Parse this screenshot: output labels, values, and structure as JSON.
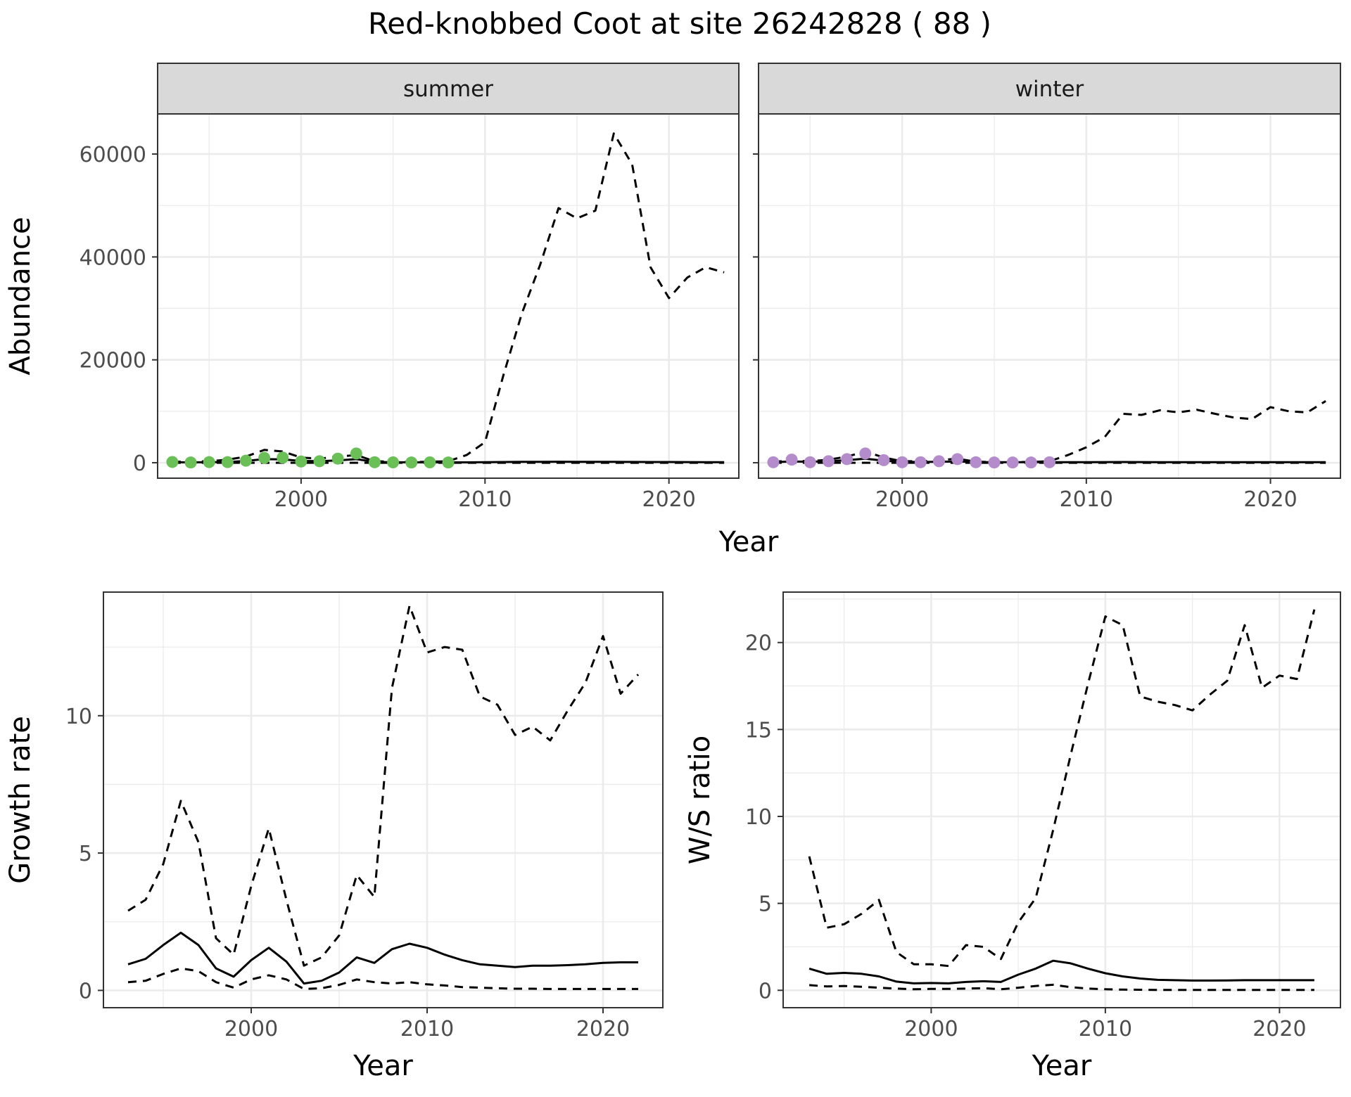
{
  "title": "Red-knobbed Coot at site 26242828 ( 88 )",
  "colors": {
    "summer_points": "#6ABF57",
    "winter_points": "#B48CCC",
    "strip_bg": "#D9D9D9",
    "grid": "#EBEBEB",
    "line": "#000000"
  },
  "chart_data": [
    {
      "type": "line",
      "facet": "summer",
      "xlabel": "Year",
      "ylabel": "Abundance",
      "xlim": [
        1992.2,
        2023.8
      ],
      "ylim": [
        -3000,
        67800
      ],
      "x_ticks": [
        2000,
        2010,
        2020
      ],
      "y_ticks": [
        0,
        20000,
        40000,
        60000
      ],
      "grid": true,
      "points": {
        "x": [
          1993,
          1994,
          1995,
          1996,
          1997,
          1998,
          1999,
          2000,
          2001,
          2002,
          2003,
          2004,
          2005,
          2006,
          2007,
          2008
        ],
        "y": [
          150,
          50,
          120,
          120,
          400,
          950,
          1000,
          250,
          300,
          800,
          1800,
          100,
          80,
          50,
          80,
          50
        ]
      },
      "series": [
        {
          "style": "solid",
          "x": [
            1993,
            1994,
            1995,
            1996,
            1997,
            1998,
            1999,
            2000,
            2001,
            2002,
            2003,
            2004,
            2005,
            2006,
            2007,
            2008,
            2009,
            2010,
            2011,
            2012,
            2013,
            2014,
            2015,
            2016,
            2017,
            2018,
            2019,
            2020,
            2021,
            2022,
            2023
          ],
          "y": [
            100,
            80,
            120,
            150,
            350,
            700,
            650,
            350,
            320,
            450,
            700,
            150,
            100,
            80,
            80,
            70,
            80,
            100,
            150,
            170,
            190,
            200,
            190,
            180,
            170,
            160,
            150,
            140,
            130,
            120,
            110
          ]
        },
        {
          "style": "dashed",
          "x": [
            1993,
            1994,
            1995,
            1996,
            1997,
            1998,
            1999,
            2000,
            2001,
            2002,
            2003,
            2004,
            2005,
            2006,
            2007,
            2008,
            2009,
            2010,
            2011,
            2012,
            2013,
            2014,
            2015,
            2016,
            2017,
            2018,
            2019,
            2020,
            2021,
            2022,
            2023
          ],
          "y": [
            200,
            200,
            300,
            600,
            1200,
            2500,
            2200,
            1000,
            800,
            1200,
            1500,
            300,
            200,
            150,
            200,
            300,
            1500,
            4000,
            17000,
            29000,
            38500,
            49500,
            47500,
            49000,
            64000,
            58000,
            38000,
            32000,
            36000,
            38000,
            37000
          ]
        },
        {
          "style": "dashed",
          "x": [
            1993,
            2000,
            2005,
            2010,
            2015,
            2020,
            2023
          ],
          "y": [
            0,
            0,
            0,
            0,
            0,
            0,
            0
          ]
        }
      ]
    },
    {
      "type": "line",
      "facet": "winter",
      "xlabel": "Year",
      "ylabel": "Abundance",
      "xlim": [
        1992.2,
        2023.8
      ],
      "ylim": [
        -3000,
        67800
      ],
      "x_ticks": [
        2000,
        2010,
        2020
      ],
      "y_ticks": [
        0,
        20000,
        40000,
        60000
      ],
      "grid": true,
      "points": {
        "x": [
          1993,
          1994,
          1995,
          1996,
          1997,
          1998,
          1999,
          2000,
          2001,
          2002,
          2003,
          2004,
          2005,
          2006,
          2007,
          2008
        ],
        "y": [
          100,
          600,
          100,
          300,
          700,
          1800,
          500,
          100,
          100,
          300,
          700,
          100,
          50,
          50,
          50,
          100
        ]
      },
      "series": [
        {
          "style": "solid",
          "x": [
            1993,
            1994,
            1995,
            1996,
            1997,
            1998,
            1999,
            2000,
            2001,
            2002,
            2003,
            2004,
            2005,
            2006,
            2007,
            2008,
            2009,
            2010,
            2011,
            2012,
            2013,
            2014,
            2015,
            2016,
            2017,
            2018,
            2019,
            2020,
            2021,
            2022,
            2023
          ],
          "y": [
            100,
            250,
            200,
            300,
            500,
            800,
            400,
            200,
            150,
            200,
            250,
            150,
            100,
            100,
            100,
            100,
            100,
            120,
            130,
            140,
            130,
            120,
            110,
            100,
            100,
            100,
            100,
            100,
            100,
            100,
            100
          ]
        },
        {
          "style": "dashed",
          "x": [
            1993,
            1994,
            1995,
            1996,
            1997,
            1998,
            1999,
            2000,
            2001,
            2002,
            2003,
            2004,
            2005,
            2006,
            2007,
            2008,
            2009,
            2010,
            2011,
            2012,
            2013,
            2014,
            2015,
            2016,
            2017,
            2018,
            2019,
            2020,
            2021,
            2022,
            2023
          ],
          "y": [
            200,
            400,
            300,
            600,
            1200,
            2200,
            1000,
            300,
            300,
            500,
            800,
            200,
            150,
            150,
            150,
            300,
            1500,
            3000,
            5000,
            9500,
            9300,
            10200,
            9800,
            10300,
            9500,
            8800,
            8500,
            10800,
            10000,
            9800,
            12000
          ]
        },
        {
          "style": "dashed",
          "x": [
            1993,
            2000,
            2005,
            2010,
            2015,
            2020,
            2023
          ],
          "y": [
            0,
            0,
            0,
            0,
            0,
            0,
            0
          ]
        }
      ]
    },
    {
      "type": "line",
      "xlabel": "Year",
      "ylabel": "Growth rate",
      "xlim": [
        1991.6,
        2023.4
      ],
      "ylim": [
        -0.63,
        14.5
      ],
      "x_ticks": [
        2000,
        2010,
        2020
      ],
      "y_ticks": [
        0,
        5,
        10
      ],
      "grid": true,
      "series": [
        {
          "style": "solid",
          "x": [
            1993,
            1994,
            1995,
            1996,
            1997,
            1998,
            1999,
            2000,
            2001,
            2002,
            2003,
            2004,
            2005,
            2006,
            2007,
            2008,
            2009,
            2010,
            2011,
            2012,
            2013,
            2014,
            2015,
            2016,
            2017,
            2018,
            2019,
            2020,
            2021,
            2022
          ],
          "y": [
            0.95,
            1.15,
            1.65,
            2.1,
            1.65,
            0.8,
            0.5,
            1.1,
            1.55,
            1.05,
            0.25,
            0.35,
            0.65,
            1.2,
            1.0,
            1.5,
            1.7,
            1.55,
            1.3,
            1.1,
            0.95,
            0.9,
            0.85,
            0.9,
            0.9,
            0.92,
            0.95,
            1.0,
            1.02,
            1.02
          ]
        },
        {
          "style": "dashed",
          "x": [
            1993,
            1994,
            1995,
            1996,
            1997,
            1998,
            1999,
            2000,
            2001,
            2002,
            2003,
            2004,
            2005,
            2006,
            2007,
            2008,
            2009,
            2010,
            2011,
            2012,
            2013,
            2014,
            2015,
            2016,
            2017,
            2018,
            2019,
            2020,
            2021,
            2022
          ],
          "y": [
            2.9,
            3.3,
            4.6,
            6.9,
            5.4,
            1.9,
            1.3,
            3.8,
            5.9,
            3.3,
            0.9,
            1.2,
            2.0,
            4.2,
            3.4,
            11.0,
            14.0,
            12.3,
            12.5,
            12.4,
            10.7,
            10.4,
            9.3,
            9.6,
            9.1,
            10.2,
            11.2,
            12.9,
            10.8,
            11.5
          ]
        },
        {
          "style": "dashed",
          "x": [
            1993,
            1994,
            1995,
            1996,
            1997,
            1998,
            1999,
            2000,
            2001,
            2002,
            2003,
            2004,
            2005,
            2006,
            2007,
            2008,
            2009,
            2010,
            2011,
            2012,
            2013,
            2014,
            2015,
            2016,
            2017,
            2018,
            2019,
            2020,
            2021,
            2022
          ],
          "y": [
            0.3,
            0.35,
            0.6,
            0.8,
            0.7,
            0.3,
            0.1,
            0.4,
            0.55,
            0.4,
            0.05,
            0.08,
            0.2,
            0.4,
            0.3,
            0.25,
            0.3,
            0.22,
            0.18,
            0.12,
            0.1,
            0.08,
            0.06,
            0.06,
            0.05,
            0.05,
            0.05,
            0.05,
            0.05,
            0.05
          ]
        }
      ]
    },
    {
      "type": "line",
      "xlabel": "Year",
      "ylabel": "W/S ratio",
      "xlim": [
        1991.5,
        2023.5
      ],
      "ylim": [
        -1.0,
        22.9
      ],
      "x_ticks": [
        2000,
        2010,
        2020
      ],
      "y_ticks": [
        0,
        5,
        10,
        15,
        20
      ],
      "grid": true,
      "series": [
        {
          "style": "solid",
          "x": [
            1993,
            1994,
            1995,
            1996,
            1997,
            1998,
            1999,
            2000,
            2001,
            2002,
            2003,
            2004,
            2005,
            2006,
            2007,
            2008,
            2009,
            2010,
            2011,
            2012,
            2013,
            2014,
            2015,
            2016,
            2017,
            2018,
            2019,
            2020,
            2021,
            2022
          ],
          "y": [
            1.25,
            0.95,
            1.0,
            0.95,
            0.8,
            0.5,
            0.4,
            0.42,
            0.4,
            0.48,
            0.52,
            0.48,
            0.9,
            1.25,
            1.7,
            1.55,
            1.25,
            0.98,
            0.8,
            0.68,
            0.6,
            0.58,
            0.56,
            0.56,
            0.57,
            0.58,
            0.58,
            0.58,
            0.58,
            0.58
          ]
        },
        {
          "style": "dashed",
          "x": [
            1993,
            1994,
            1995,
            1996,
            1997,
            1998,
            1999,
            2000,
            2001,
            2002,
            2003,
            2004,
            2005,
            2006,
            2007,
            2008,
            2009,
            2010,
            2011,
            2012,
            2013,
            2014,
            2015,
            2016,
            2017,
            2018,
            2019,
            2020,
            2021,
            2022
          ],
          "y": [
            7.7,
            3.6,
            3.8,
            4.4,
            5.2,
            2.2,
            1.5,
            1.5,
            1.4,
            2.6,
            2.5,
            1.8,
            3.9,
            5.3,
            9.2,
            13.5,
            17.6,
            21.5,
            21.0,
            16.9,
            16.6,
            16.4,
            16.1,
            17.0,
            17.8,
            21.0,
            17.4,
            18.1,
            17.9,
            21.9
          ]
        },
        {
          "style": "dashed",
          "x": [
            1993,
            1994,
            1995,
            1996,
            1997,
            1998,
            1999,
            2000,
            2001,
            2002,
            2003,
            2004,
            2005,
            2006,
            2007,
            2008,
            2009,
            2010,
            2011,
            2012,
            2013,
            2014,
            2015,
            2016,
            2017,
            2018,
            2019,
            2020,
            2021,
            2022
          ],
          "y": [
            0.3,
            0.22,
            0.25,
            0.2,
            0.15,
            0.1,
            0.06,
            0.08,
            0.08,
            0.1,
            0.12,
            0.06,
            0.15,
            0.25,
            0.32,
            0.18,
            0.1,
            0.06,
            0.04,
            0.03,
            0.02,
            0.02,
            0.02,
            0.02,
            0.02,
            0.02,
            0.02,
            0.02,
            0.02,
            0.02
          ]
        }
      ]
    }
  ]
}
